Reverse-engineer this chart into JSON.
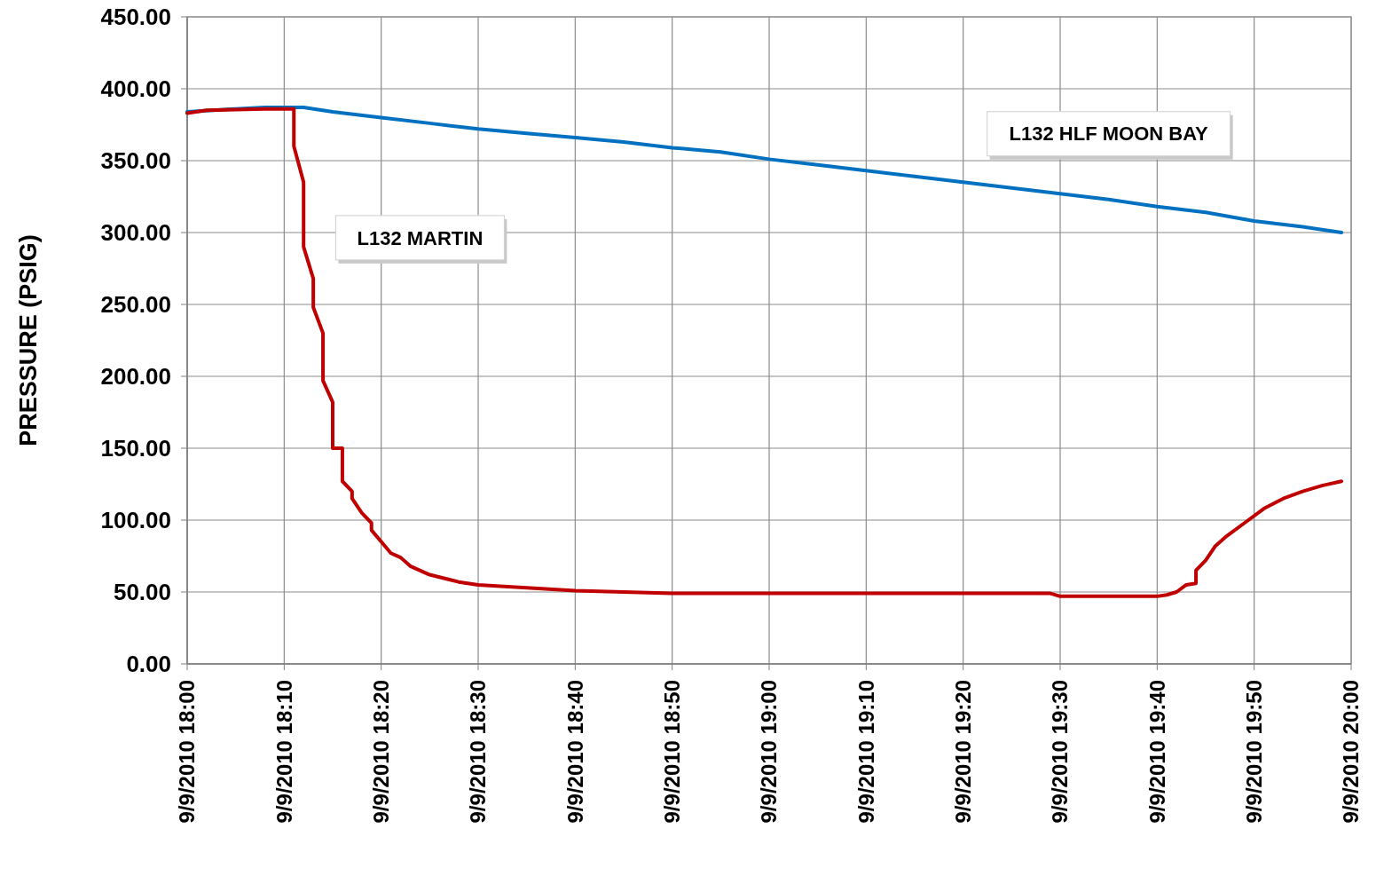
{
  "chart_data": {
    "type": "line",
    "ylabel": "PRESSURE (PSIG)",
    "grid": true,
    "marker": "none",
    "line_style": "solid",
    "xlim": [
      "2010-09-09T18:00",
      "2010-09-09T20:00"
    ],
    "xticks": [
      {
        "value": "2010-09-09T18:00",
        "label": "9/9/2010 18:00"
      },
      {
        "value": "2010-09-09T18:10",
        "label": "9/9/2010 18:10"
      },
      {
        "value": "2010-09-09T18:20",
        "label": "9/9/2010 18:20"
      },
      {
        "value": "2010-09-09T18:30",
        "label": "9/9/2010 18:30"
      },
      {
        "value": "2010-09-09T18:40",
        "label": "9/9/2010 18:40"
      },
      {
        "value": "2010-09-09T18:50",
        "label": "9/9/2010 18:50"
      },
      {
        "value": "2010-09-09T19:00",
        "label": "9/9/2010 19:00"
      },
      {
        "value": "2010-09-09T19:10",
        "label": "9/9/2010 19:10"
      },
      {
        "value": "2010-09-09T19:20",
        "label": "9/9/2010 19:20"
      },
      {
        "value": "2010-09-09T19:30",
        "label": "9/9/2010 19:30"
      },
      {
        "value": "2010-09-09T19:40",
        "label": "9/9/2010 19:40"
      },
      {
        "value": "2010-09-09T19:50",
        "label": "9/9/2010 19:50"
      },
      {
        "value": "2010-09-09T20:00",
        "label": "9/9/2010 20:00"
      }
    ],
    "ylim": [
      0,
      450
    ],
    "yticks": [
      {
        "value": 0,
        "label": "0.00"
      },
      {
        "value": 50,
        "label": "50.00"
      },
      {
        "value": 100,
        "label": "100.00"
      },
      {
        "value": 150,
        "label": "150.00"
      },
      {
        "value": 200,
        "label": "200.00"
      },
      {
        "value": 250,
        "label": "250.00"
      },
      {
        "value": 300,
        "label": "300.00"
      },
      {
        "value": 350,
        "label": "350.00"
      },
      {
        "value": 400,
        "label": "400.00"
      },
      {
        "value": 450,
        "label": "450.00"
      }
    ],
    "series": [
      {
        "name": "L132 HLF MOON BAY",
        "color": "#0070c0",
        "x": [
          "2010-09-09T18:00",
          "2010-09-09T18:05",
          "2010-09-09T18:08",
          "2010-09-09T18:12",
          "2010-09-09T18:15",
          "2010-09-09T18:20",
          "2010-09-09T18:25",
          "2010-09-09T18:30",
          "2010-09-09T18:35",
          "2010-09-09T18:40",
          "2010-09-09T18:45",
          "2010-09-09T18:50",
          "2010-09-09T18:55",
          "2010-09-09T19:00",
          "2010-09-09T19:05",
          "2010-09-09T19:10",
          "2010-09-09T19:15",
          "2010-09-09T19:20",
          "2010-09-09T19:25",
          "2010-09-09T19:30",
          "2010-09-09T19:35",
          "2010-09-09T19:40",
          "2010-09-09T19:45",
          "2010-09-09T19:50",
          "2010-09-09T19:55",
          "2010-09-09T19:59"
        ],
        "values": [
          384,
          386,
          387,
          387,
          384,
          380,
          376,
          372,
          369,
          366,
          363,
          359,
          356,
          351,
          347,
          343,
          339,
          335,
          331,
          327,
          323,
          318,
          314,
          308,
          304,
          300
        ]
      },
      {
        "name": "L132 MARTIN",
        "color": "#c00000",
        "x": [
          "2010-09-09T18:00",
          "2010-09-09T18:02",
          "2010-09-09T18:08",
          "2010-09-09T18:11",
          "2010-09-09T18:11",
          "2010-09-09T18:12",
          "2010-09-09T18:12",
          "2010-09-09T18:13",
          "2010-09-09T18:13",
          "2010-09-09T18:14",
          "2010-09-09T18:14",
          "2010-09-09T18:15",
          "2010-09-09T18:15",
          "2010-09-09T18:16",
          "2010-09-09T18:16",
          "2010-09-09T18:17",
          "2010-09-09T18:17",
          "2010-09-09T18:18",
          "2010-09-09T18:19",
          "2010-09-09T18:19",
          "2010-09-09T18:20",
          "2010-09-09T18:21",
          "2010-09-09T18:22",
          "2010-09-09T18:23",
          "2010-09-09T18:25",
          "2010-09-09T18:28",
          "2010-09-09T18:30",
          "2010-09-09T18:35",
          "2010-09-09T18:40",
          "2010-09-09T18:45",
          "2010-09-09T18:50",
          "2010-09-09T19:10",
          "2010-09-09T19:29",
          "2010-09-09T19:30",
          "2010-09-09T19:40",
          "2010-09-09T19:41",
          "2010-09-09T19:42",
          "2010-09-09T19:43",
          "2010-09-09T19:44",
          "2010-09-09T19:44",
          "2010-09-09T19:45",
          "2010-09-09T19:46",
          "2010-09-09T19:47",
          "2010-09-09T19:49",
          "2010-09-09T19:51",
          "2010-09-09T19:53",
          "2010-09-09T19:55",
          "2010-09-09T19:57",
          "2010-09-09T19:59"
        ],
        "values": [
          383,
          385,
          386,
          386,
          360,
          335,
          290,
          268,
          248,
          230,
          197,
          182,
          150,
          150,
          127,
          120,
          115,
          105,
          98,
          93,
          85,
          77,
          74,
          68,
          62,
          57,
          55,
          53,
          51,
          50,
          49,
          49,
          49,
          47,
          47,
          48,
          50,
          55,
          56,
          65,
          72,
          82,
          88,
          98,
          108,
          115,
          120,
          124,
          127
        ]
      }
    ]
  }
}
